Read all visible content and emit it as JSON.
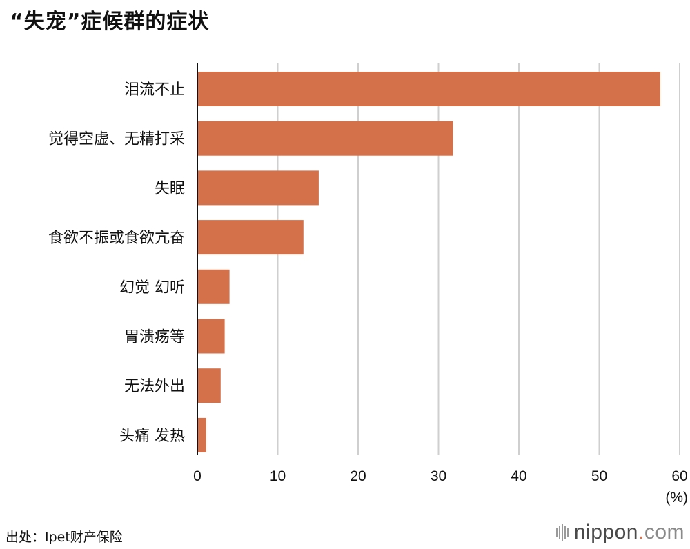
{
  "title": "“失宠”症候群的症状",
  "chart_data": {
    "type": "bar",
    "orientation": "horizontal",
    "categories": [
      "泪流不止",
      "觉得空虚、无精打采",
      "失眠",
      "食欲不振或食欲亢奋",
      "幻觉 幻听",
      "胃溃疡等",
      "无法外出",
      "头痛 发热"
    ],
    "values": [
      57.6,
      31.8,
      15.1,
      13.2,
      4.0,
      3.4,
      2.9,
      1.1
    ],
    "xlim": [
      0,
      60
    ],
    "xticks": [
      "0",
      "10",
      "20",
      "30",
      "40",
      "50",
      "60"
    ],
    "xunit": "(%)",
    "bar_color": "#d4714a",
    "grid": true
  },
  "source": "出处：Ipet财产保险",
  "brand": {
    "name": "nippon",
    "dot": ".",
    "tld": "com"
  }
}
